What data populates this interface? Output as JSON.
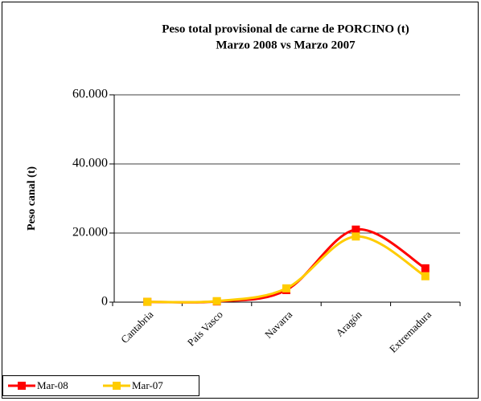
{
  "chart_data": {
    "type": "line",
    "title": "Peso total provisional de carne de PORCINO (t)",
    "subtitle": "Marzo 2008 vs Marzo 2007",
    "y_label": "Peso canal (t)",
    "categories": [
      "Cantabria",
      "País Vasco",
      "Navarra",
      "Aragón",
      "Extremadura"
    ],
    "series": [
      {
        "name": "Mar-08",
        "color": "#ff0000",
        "values": [
          100,
          200,
          3500,
          21000,
          9800
        ]
      },
      {
        "name": "Mar-07",
        "color": "#ffcc00",
        "values": [
          100,
          300,
          4000,
          19000,
          7500
        ]
      }
    ],
    "ylim": [
      0,
      60000
    ],
    "yticks": [
      0,
      {
        "value": 20000,
        "label": "20.000"
      },
      {
        "value": 40000,
        "label": "40.000"
      },
      {
        "value": 60000,
        "label": "60.000"
      }
    ],
    "grid": true,
    "smooth": true,
    "legend": "bottom-left"
  }
}
